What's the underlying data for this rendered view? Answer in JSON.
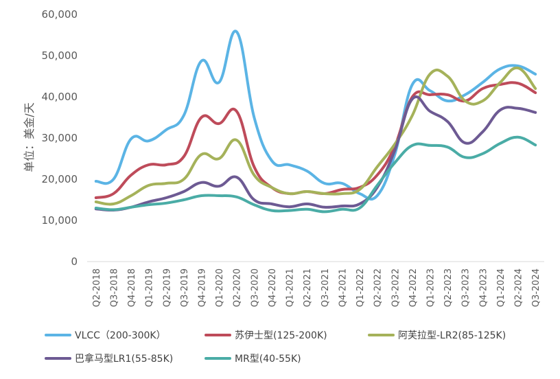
{
  "chart_data": {
    "type": "line",
    "ylabel": "单位：美金/天",
    "ylim": [
      0,
      60000
    ],
    "yticks": [
      0,
      10000,
      20000,
      30000,
      40000,
      50000,
      60000
    ],
    "ytick_labels": [
      "0",
      "10,000",
      "20,000",
      "30,000",
      "40,000",
      "50,000",
      "60,000"
    ],
    "categories": [
      "Q2-2018",
      "Q3-2018",
      "Q4-2018",
      "Q1-2019",
      "Q2-2019",
      "Q3-2019",
      "Q4-2019",
      "Q1-2020",
      "Q2-2020",
      "Q3-2020",
      "Q4-2020",
      "Q1-2021",
      "Q2-2021",
      "Q3-2021",
      "Q4-2021",
      "Q1-2022",
      "Q2-2022",
      "Q3-2022",
      "Q4-2022",
      "Q1-2023",
      "Q2-2023",
      "Q3-2023",
      "Q4-2023",
      "Q1-2024",
      "Q2-2024",
      "Q3-2024"
    ],
    "grid": false,
    "legend_position": "bottom",
    "series": [
      {
        "name": "VLCC（200-300K）",
        "color": "#5BB4E5",
        "values": [
          19500,
          20000,
          29800,
          29300,
          32000,
          35500,
          48700,
          43500,
          55800,
          35000,
          24500,
          23500,
          22000,
          19000,
          19000,
          16500,
          16000,
          26000,
          43000,
          41500,
          39000,
          40500,
          43500,
          46800,
          47500,
          45500
        ]
      },
      {
        "name": "苏伊士型(125-200K)",
        "color": "#BE4B5A",
        "values": [
          15500,
          16500,
          21000,
          23500,
          23500,
          25500,
          35000,
          33500,
          36500,
          23000,
          18000,
          16500,
          17000,
          16500,
          17500,
          18000,
          21000,
          28000,
          40000,
          40500,
          40500,
          39000,
          42000,
          43000,
          43300,
          41000
        ]
      },
      {
        "name": "阿芙拉型-LR2(85-125K)",
        "color": "#A5B25A",
        "values": [
          14500,
          14000,
          16000,
          18500,
          19000,
          20000,
          26000,
          25000,
          29500,
          21000,
          18000,
          16500,
          17000,
          16500,
          16500,
          17500,
          23000,
          28500,
          35500,
          45500,
          45000,
          39000,
          39000,
          43500,
          47000,
          42000
        ]
      },
      {
        "name": "巴拿马型LR1(55-85K)",
        "color": "#6D5A93",
        "values": [
          12800,
          12500,
          13200,
          14500,
          15500,
          17000,
          19200,
          18300,
          20500,
          15000,
          14000,
          13300,
          14000,
          13200,
          13500,
          14000,
          18000,
          27000,
          39500,
          36500,
          34000,
          28800,
          31500,
          36800,
          37200,
          36200
        ]
      },
      {
        "name": "MR型(40-55K)",
        "color": "#4AACA6",
        "values": [
          13000,
          12600,
          13200,
          13800,
          14200,
          15000,
          16000,
          16000,
          15700,
          13800,
          12400,
          12400,
          12700,
          12100,
          12700,
          13000,
          18500,
          24000,
          28200,
          28200,
          27800,
          25300,
          26200,
          28700,
          30200,
          28300
        ]
      }
    ]
  }
}
